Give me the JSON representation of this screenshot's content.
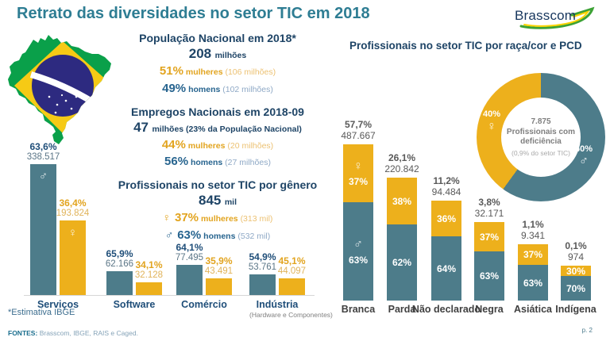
{
  "slide": {
    "title": "Retrato das diversidades no setor TIC em 2018",
    "logo": "Brasscom",
    "footnote": "*Estimativa IBGE",
    "sources_label": "FONTES:",
    "sources_text": "Brasscom, IBGE, RAIS e Caged.",
    "page": "p. 2"
  },
  "icons": {
    "female": "♀",
    "male": "♂"
  },
  "colors": {
    "teal": "#4d7c8a",
    "yellow": "#edb01c",
    "navy": "#1f4e79",
    "gold_text": "#e2a41f",
    "title_teal": "#2e7d93"
  },
  "population": {
    "heading": "População Nacional em 2018*",
    "big": "208",
    "big_unit": "milhões",
    "women": {
      "pct": "51%",
      "label": "mulheres",
      "detail": "(106 milhões)"
    },
    "men": {
      "pct": "49%",
      "label": "homens",
      "detail": "(102 milhões)"
    }
  },
  "jobs": {
    "heading": "Empregos Nacionais em 2018-09",
    "big": "47",
    "big_unit": "milhões (23% da População Nacional)",
    "women": {
      "pct": "44%",
      "label": "mulheres",
      "detail": "(20 milhões)"
    },
    "men": {
      "pct": "56%",
      "label": "homens",
      "detail": "(27 milhões)"
    }
  },
  "tic_gender": {
    "heading": "Profissionais no setor TIC por gênero",
    "big": "845",
    "big_unit": "mil",
    "women": {
      "pct": "37%",
      "label": "mulheres",
      "detail": "(313 mil)"
    },
    "men": {
      "pct": "63%",
      "label": "homens",
      "detail": "(532 mil)"
    }
  },
  "race_chart_title": "Profissionais no setor TIC por raça/cor e PCD",
  "chart_data": [
    {
      "type": "bar",
      "name": "profissionais-tic-por-segmento-e-genero",
      "max_value": 338517,
      "groups": [
        {
          "category": "Serviços",
          "bars": [
            {
              "gender": "homens",
              "pct": "63,6%",
              "value_label": "338.517",
              "value": 338517,
              "icon": "male"
            },
            {
              "gender": "mulheres",
              "pct": "36,4%",
              "value_label": "193.824",
              "value": 193824,
              "icon": "female"
            }
          ]
        },
        {
          "category": "Software",
          "bars": [
            {
              "gender": "homens",
              "pct": "65,9%",
              "value_label": "62.166",
              "value": 62166
            },
            {
              "gender": "mulheres",
              "pct": "34,1%",
              "value_label": "32.128",
              "value": 32128
            }
          ]
        },
        {
          "category": "Comércio",
          "bars": [
            {
              "gender": "homens",
              "pct": "64,1%",
              "value_label": "77.495",
              "value": 77495
            },
            {
              "gender": "mulheres",
              "pct": "35,9%",
              "value_label": "43.491",
              "value": 43491
            }
          ]
        },
        {
          "category": "Indústria",
          "subtitle": "(Hardware e Componentes)",
          "bars": [
            {
              "gender": "homens",
              "pct": "54,9%",
              "value_label": "53.761",
              "value": 53761
            },
            {
              "gender": "mulheres",
              "pct": "45,1%",
              "value_label": "44.097",
              "value": 44097
            }
          ]
        }
      ]
    },
    {
      "type": "bar",
      "subtype": "stacked",
      "name": "profissionais-tic-por-raca-cor",
      "categories": [
        "Branca",
        "Parda",
        "Não declarado",
        "Negra",
        "Asiática",
        "Indígena"
      ],
      "totals_pct": [
        "57,7%",
        "26,1%",
        "11,2%",
        "3,8%",
        "1,1%",
        "0,1%"
      ],
      "totals": [
        "487.667",
        "220.842",
        "94.484",
        "32.171",
        "9.341",
        "974"
      ],
      "series": [
        {
          "name": "mulheres",
          "pct": [
            37,
            38,
            36,
            37,
            37,
            30
          ]
        },
        {
          "name": "homens",
          "pct": [
            63,
            62,
            64,
            63,
            63,
            70
          ]
        }
      ],
      "display_heights": [
        197,
        155,
        126,
        99,
        71,
        44
      ],
      "icons_on_first_bar": true
    },
    {
      "type": "donut",
      "name": "pcd-genero",
      "segments": [
        {
          "name": "mulheres",
          "pct": 40,
          "pct_label": "40%"
        },
        {
          "name": "homens",
          "pct": 60,
          "pct_label": "60%"
        }
      ],
      "center": {
        "line1": "7.875 Profissionais com deficiência",
        "line2": "(0,9% do setor TIC)"
      }
    }
  ]
}
